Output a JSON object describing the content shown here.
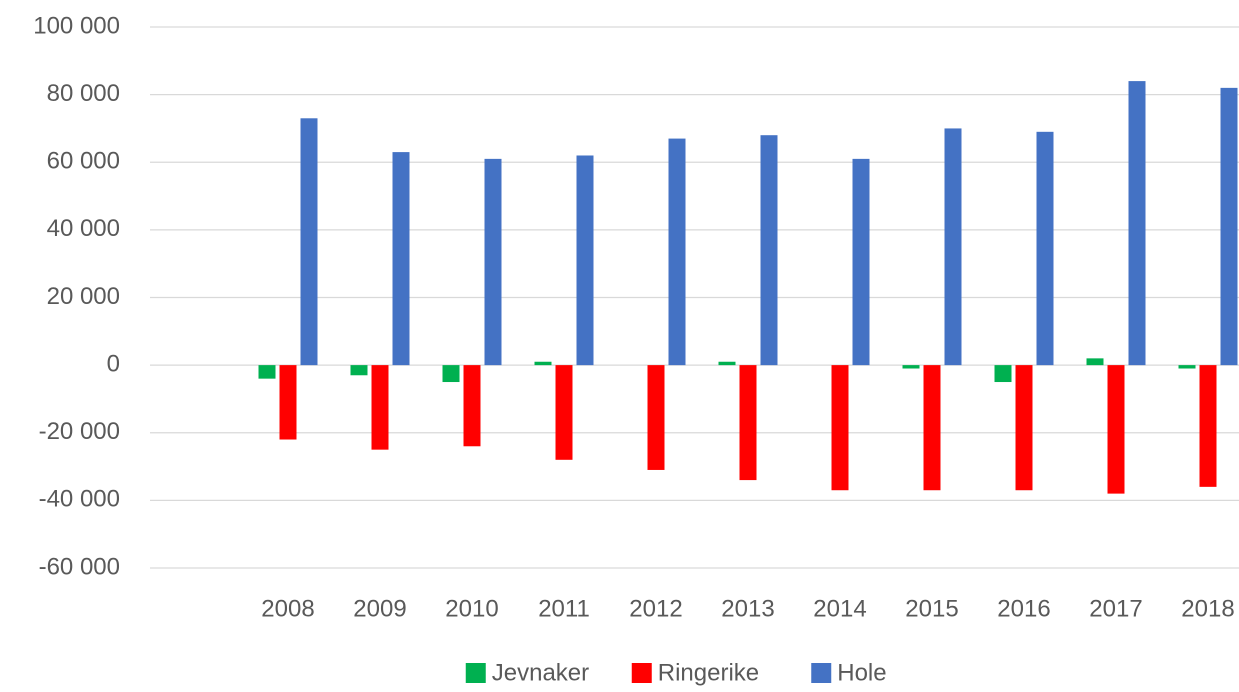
{
  "chart_data": {
    "type": "bar",
    "categories": [
      null,
      "2008",
      "2009",
      "2010",
      "2011",
      "2012",
      "2013",
      "2014",
      "2015",
      "2016",
      "2017",
      "2018"
    ],
    "series": [
      {
        "name": "Jevnaker",
        "color": "#00b050",
        "values": [
          null,
          -4000,
          -3000,
          -5000,
          1000,
          0,
          1000,
          0,
          -1000,
          -5000,
          2000,
          -1000
        ]
      },
      {
        "name": "Ringerike",
        "color": "#ff0000",
        "values": [
          null,
          -22000,
          -25000,
          -24000,
          -28000,
          -31000,
          -34000,
          -37000,
          -37000,
          -37000,
          -38000,
          -36000
        ]
      },
      {
        "name": "Hole",
        "color": "#4472c4",
        "values": [
          null,
          73000,
          63000,
          61000,
          62000,
          67000,
          68000,
          61000,
          70000,
          69000,
          84000,
          82000
        ]
      }
    ],
    "ylim": [
      -60000,
      100000
    ],
    "yticks": [
      {
        "value": -60000,
        "label": "-60 000"
      },
      {
        "value": -40000,
        "label": "-40 000"
      },
      {
        "value": -20000,
        "label": "-20 000"
      },
      0,
      {
        "value": 20000,
        "label": "20 000"
      },
      {
        "value": 40000,
        "label": "40 000"
      },
      {
        "value": 60000,
        "label": "60 000"
      },
      {
        "value": 80000,
        "label": "80 000"
      },
      {
        "value": 100000,
        "label": "100 000"
      }
    ],
    "grid": true,
    "legend": "bottom"
  }
}
